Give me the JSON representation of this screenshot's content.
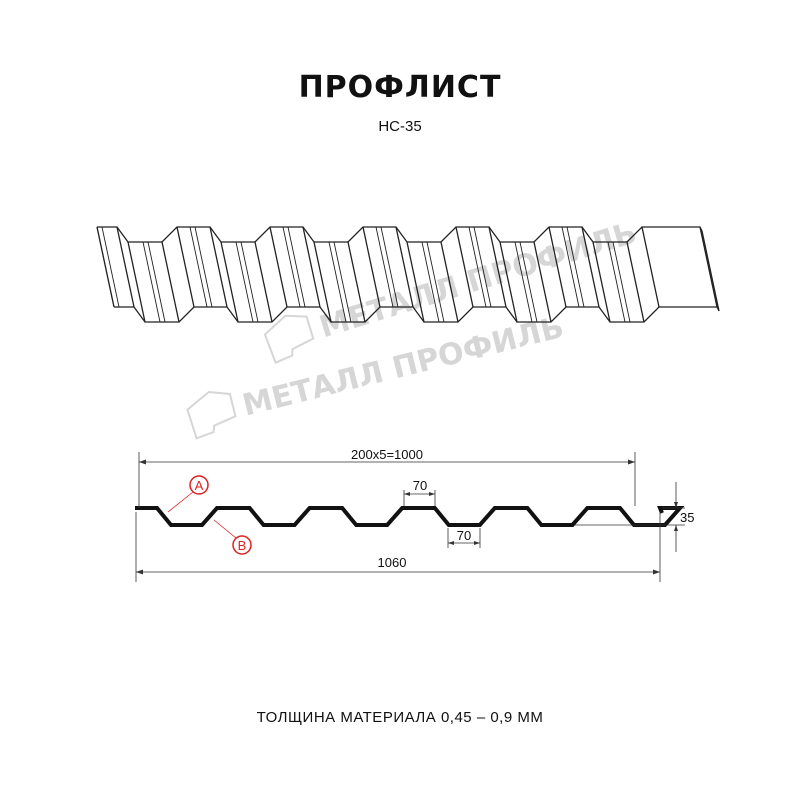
{
  "header": {
    "title": "ПРОФЛИСТ",
    "model": "НС-35"
  },
  "watermark": {
    "text": "МЕТАЛЛ ПРОФИЛЬ"
  },
  "drawing": {
    "dimensions": {
      "working_width": "200x5=1000",
      "total_width": "1060",
      "crest_width": "70",
      "trough_width": "70",
      "height": "35"
    },
    "callouts": [
      "A",
      "B"
    ],
    "profile_color": "#111111",
    "callout_color": "#e02020"
  },
  "footer": {
    "thickness": "ТОЛЩИНА МАТЕРИАЛА 0,45 – 0,9 ММ"
  }
}
